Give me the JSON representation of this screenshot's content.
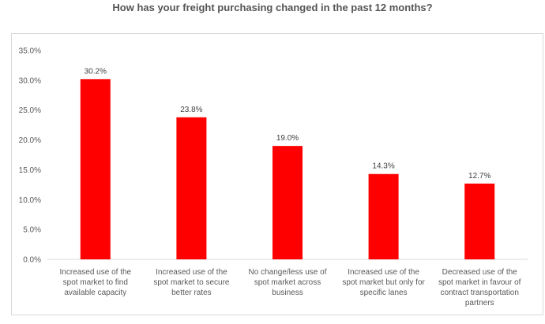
{
  "chart_data": {
    "type": "bar",
    "title": "How has your freight purchasing changed in the past 12 months?",
    "categories": [
      "Increased use of the spot market to find available capacity",
      "Increased use of the spot market to secure better rates",
      "No change/less use of spot market across business",
      "Increased use of the spot market but only for specific lanes",
      "Decreased use of the spot market in favour of contract transportation partners"
    ],
    "values": [
      30.2,
      23.8,
      19.0,
      14.3,
      12.7
    ],
    "value_labels": [
      "30.2%",
      "23.8%",
      "19.0%",
      "14.3%",
      "12.7%"
    ],
    "ylim": [
      0,
      35
    ],
    "ytick_labels": [
      "0.0%",
      "5.0%",
      "10.0%",
      "15.0%",
      "20.0%",
      "25.0%",
      "30.0%",
      "35.0%"
    ],
    "bar_color": "#ff0000",
    "grid": false,
    "legend": "none"
  }
}
